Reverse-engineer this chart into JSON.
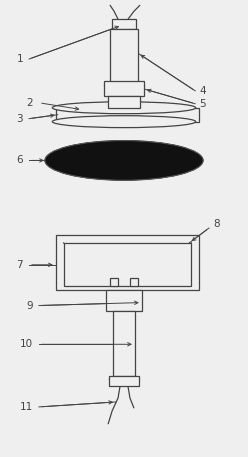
{
  "figsize": [
    2.48,
    4.57
  ],
  "dpi": 100,
  "bg_color": "#efefef",
  "line_color": "#444444",
  "dark_fill": "#111111",
  "white_fill": "#efefef",
  "lw": 0.9,
  "arrow_lw": 0.7,
  "fontsize": 7.5
}
